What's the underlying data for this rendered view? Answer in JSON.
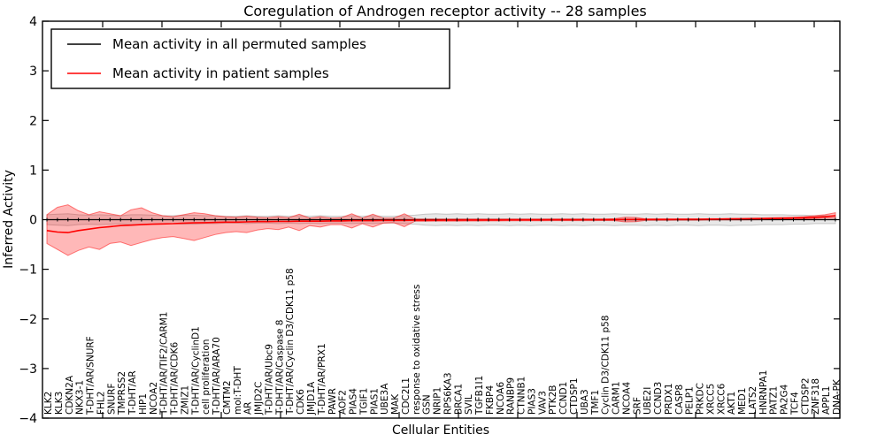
{
  "title": "Coregulation of Androgen receptor activity -- 28 samples",
  "axes": {
    "xlabel": "Cellular Entities",
    "ylabel": "Inferred Activity",
    "ytick_labels": [
      "−4",
      "−3",
      "−2",
      "−1",
      "0",
      "1",
      "2",
      "3",
      "4"
    ],
    "ytick_values": [
      -4,
      -3,
      -2,
      -1,
      0,
      1,
      2,
      3,
      4
    ],
    "ylim": [
      -4,
      4
    ]
  },
  "legend": {
    "position": "upper left",
    "entries": [
      {
        "label": "Mean activity in all permuted samples",
        "color": "#000000"
      },
      {
        "label": "Mean activity in patient samples",
        "color": "#ff0000"
      }
    ]
  },
  "colors": {
    "permuted_line": "#000000",
    "patient_line": "#ff0000",
    "permuted_band": "#808080",
    "patient_band": "#ff0000",
    "background": "#ffffff"
  },
  "chart_data": {
    "type": "line",
    "title": "Coregulation of Androgen receptor activity -- 28 samples",
    "xlabel": "Cellular Entities",
    "ylabel": "Inferred Activity",
    "ylim": [
      -4,
      4
    ],
    "grid": false,
    "legend_position": "upper left",
    "categories": [
      "KLK2",
      "KLK3",
      "CDKN2A",
      "NKX3-1",
      "T-DHT/AR/SNURF",
      "FHL2",
      "SNURF",
      "TMPRSS2",
      "T-DHT/AR",
      "HIP1",
      "NCOA2",
      "T-DHT/AR/TIF2/CARM1",
      "T-DHT/AR/CDK6",
      "ZMIZ1",
      "T-DHT/AR/CyclinD1",
      "cell proliferation",
      "T-DHT/AR/ARA70",
      "CMTM2",
      "mol:T-DHT",
      "AR",
      "JMJD2C",
      "T-DHT/AR/Ubc9",
      "T-DHT/AR/Caspase 8",
      "T-DHT/AR/Cyclin D3/CDK11 p58",
      "CDK6",
      "JMJD1A",
      "T-DHT/AR/PRX1",
      "PAWR",
      "AOF2",
      "PIAS4",
      "TGIF1",
      "PIAS1",
      "UBE3A",
      "MAK",
      "CDC2L1",
      "response to oxidative stress",
      "GSN",
      "NRIP1",
      "RPS6KA3",
      "BRCA1",
      "SVIL",
      "TGFB1I1",
      "FKBP4",
      "NCOA6",
      "RANBP9",
      "CTNNB1",
      "PIAS3",
      "VAV3",
      "PTK2B",
      "CCND1",
      "CTDSP1",
      "UBA3",
      "TMF1",
      "Cyclin D3/CDK11 p58",
      "CARM1",
      "NCOA4",
      "SRF",
      "UBE2I",
      "CCND3",
      "PRDX1",
      "CASP8",
      "PELP1",
      "PRKDC",
      "XRCC5",
      "XRCC6",
      "AKT1",
      "MED1",
      "LATS2",
      "HNRNPA1",
      "PATZ1",
      "PA2G4",
      "TCF4",
      "CTDSP2",
      "ZNF318",
      "APPL1",
      "DNA-PK"
    ],
    "series": [
      {
        "name": "Mean activity in all permuted samples",
        "color": "#000000",
        "marker": "tick",
        "values": [
          0,
          0,
          0,
          0,
          0,
          0,
          0,
          0,
          0,
          0,
          0,
          0,
          0,
          0,
          0,
          0,
          0,
          0,
          0,
          0,
          0,
          0,
          0,
          0,
          0,
          0,
          0,
          0,
          0,
          0,
          0,
          0,
          0,
          0,
          0,
          0,
          0,
          0,
          0,
          0,
          0,
          0,
          0,
          0,
          0,
          0,
          0,
          0,
          0,
          0,
          0,
          0,
          0,
          0,
          0,
          0,
          0,
          0,
          0,
          0,
          0,
          0,
          0,
          0,
          0,
          0,
          0,
          0,
          0,
          0,
          0,
          0,
          0,
          0,
          0,
          0
        ]
      },
      {
        "name": "Mean activity in patient samples",
        "color": "#ff0000",
        "marker": "none",
        "values": [
          -0.22,
          -0.25,
          -0.26,
          -0.22,
          -0.19,
          -0.16,
          -0.14,
          -0.12,
          -0.11,
          -0.1,
          -0.09,
          -0.085,
          -0.08,
          -0.07,
          -0.065,
          -0.06,
          -0.055,
          -0.05,
          -0.05,
          -0.045,
          -0.04,
          -0.04,
          -0.035,
          -0.035,
          -0.03,
          -0.03,
          -0.03,
          -0.025,
          -0.025,
          -0.02,
          -0.02,
          -0.02,
          -0.015,
          -0.015,
          -0.015,
          -0.01,
          -0.01,
          -0.01,
          -0.008,
          -0.008,
          -0.006,
          -0.006,
          -0.005,
          -0.005,
          -0.004,
          -0.004,
          -0.003,
          -0.003,
          -0.002,
          -0.002,
          -0.001,
          0,
          0,
          0.001,
          0.002,
          0.003,
          0.004,
          0.005,
          0.005,
          0.006,
          0.007,
          0.008,
          0.009,
          0.01,
          0.012,
          0.014,
          0.016,
          0.018,
          0.02,
          0.024,
          0.028,
          0.033,
          0.04,
          0.048,
          0.058,
          0.08
        ]
      }
    ],
    "bands": [
      {
        "name": "permuted-samples-band",
        "color": "#808080",
        "fill_opacity": 0.18,
        "upper": [
          0.1,
          0.11,
          0.12,
          0.1,
          0.09,
          0.1,
          0.09,
          0.08,
          0.1,
          0.1,
          0.09,
          0.08,
          0.08,
          0.09,
          0.09,
          0.08,
          0.08,
          0.07,
          0.07,
          0.08,
          0.07,
          0.07,
          0.08,
          0.07,
          0.08,
          0.07,
          0.08,
          0.07,
          0.07,
          0.08,
          0.07,
          0.08,
          0.07,
          0.07,
          0.08,
          0.09,
          0.11,
          0.12,
          0.11,
          0.12,
          0.11,
          0.12,
          0.11,
          0.11,
          0.12,
          0.11,
          0.12,
          0.11,
          0.11,
          0.12,
          0.11,
          0.12,
          0.11,
          0.11,
          0.12,
          0.11,
          0.11,
          0.12,
          0.11,
          0.12,
          0.11,
          0.11,
          0.12,
          0.11,
          0.11,
          0.12,
          0.11,
          0.11,
          0.1,
          0.1,
          0.1,
          0.09,
          0.09,
          0.08,
          0.08,
          0.08
        ],
        "lower": [
          -0.1,
          -0.11,
          -0.12,
          -0.1,
          -0.09,
          -0.1,
          -0.09,
          -0.08,
          -0.1,
          -0.1,
          -0.09,
          -0.08,
          -0.08,
          -0.09,
          -0.09,
          -0.08,
          -0.08,
          -0.07,
          -0.07,
          -0.08,
          -0.07,
          -0.07,
          -0.08,
          -0.07,
          -0.08,
          -0.07,
          -0.08,
          -0.07,
          -0.07,
          -0.08,
          -0.07,
          -0.08,
          -0.07,
          -0.07,
          -0.08,
          -0.09,
          -0.11,
          -0.12,
          -0.11,
          -0.12,
          -0.11,
          -0.12,
          -0.11,
          -0.11,
          -0.12,
          -0.11,
          -0.12,
          -0.11,
          -0.11,
          -0.12,
          -0.11,
          -0.12,
          -0.11,
          -0.11,
          -0.12,
          -0.11,
          -0.11,
          -0.12,
          -0.11,
          -0.12,
          -0.11,
          -0.11,
          -0.12,
          -0.11,
          -0.11,
          -0.12,
          -0.11,
          -0.11,
          -0.1,
          -0.1,
          -0.1,
          -0.09,
          -0.09,
          -0.08,
          -0.08,
          -0.08
        ]
      },
      {
        "name": "patient-samples-band",
        "color": "#ff0000",
        "fill_opacity": 0.28,
        "upper": [
          0.1,
          0.25,
          0.3,
          0.18,
          0.1,
          0.16,
          0.12,
          0.08,
          0.2,
          0.24,
          0.14,
          0.08,
          0.06,
          0.1,
          0.14,
          0.12,
          0.08,
          0.06,
          0.05,
          0.07,
          0.05,
          0.04,
          0.06,
          0.04,
          0.11,
          0.03,
          0.06,
          0.03,
          0.04,
          0.12,
          0.03,
          0.11,
          0.03,
          0.03,
          0.12,
          0.012,
          0.012,
          0.012,
          0.012,
          0.012,
          0.012,
          0.012,
          0.012,
          0.012,
          0.012,
          0.012,
          0.012,
          0.012,
          0.012,
          0.012,
          0.012,
          0.012,
          0.012,
          0.012,
          0.02,
          0.05,
          0.045,
          0.015,
          0.015,
          0.015,
          0.015,
          0.015,
          0.015,
          0.02,
          0.02,
          0.025,
          0.025,
          0.03,
          0.035,
          0.04,
          0.045,
          0.05,
          0.06,
          0.08,
          0.1,
          0.14
        ],
        "lower": [
          -0.48,
          -0.6,
          -0.72,
          -0.62,
          -0.55,
          -0.6,
          -0.48,
          -0.45,
          -0.52,
          -0.46,
          -0.4,
          -0.36,
          -0.34,
          -0.38,
          -0.42,
          -0.36,
          -0.3,
          -0.26,
          -0.24,
          -0.26,
          -0.21,
          -0.18,
          -0.2,
          -0.15,
          -0.22,
          -0.12,
          -0.15,
          -0.1,
          -0.1,
          -0.17,
          -0.08,
          -0.15,
          -0.07,
          -0.06,
          -0.14,
          -0.03,
          -0.03,
          -0.028,
          -0.028,
          -0.028,
          -0.026,
          -0.026,
          -0.025,
          -0.025,
          -0.024,
          -0.024,
          -0.022,
          -0.022,
          -0.02,
          -0.02,
          -0.02,
          -0.02,
          -0.02,
          -0.018,
          -0.02,
          -0.045,
          -0.04,
          -0.012,
          -0.012,
          -0.012,
          -0.01,
          -0.01,
          -0.01,
          -0.008,
          -0.006,
          -0.005,
          -0.004,
          -0.002,
          0.0,
          0.004,
          0.008,
          0.012,
          0.018,
          0.024,
          0.03,
          0.03
        ]
      }
    ]
  }
}
